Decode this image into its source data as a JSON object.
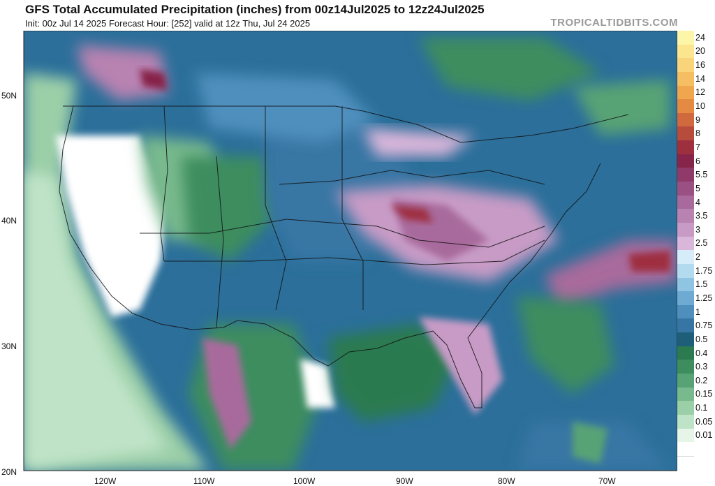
{
  "header": {
    "title": "GFS Total Accumulated Precipitation (inches) from 00z14Jul2025 to 12z24Jul2025",
    "subtitle": "Init: 00z Jul 14 2025   Forecast Hour: [252]   valid at 12z Thu, Jul 24 2025",
    "brand": "TROPICALTIDBITS.COM"
  },
  "map": {
    "lat_labels": [
      "50N",
      "40N",
      "30N",
      "20N"
    ],
    "lon_labels": [
      "120W",
      "110W",
      "100W",
      "90W",
      "80W",
      "70W"
    ]
  },
  "legend": {
    "levels": [
      {
        "label": "24",
        "color": "#fdf6a8"
      },
      {
        "label": "20",
        "color": "#fbe58f"
      },
      {
        "label": "16",
        "color": "#f9d47a"
      },
      {
        "label": "14",
        "color": "#f5be63"
      },
      {
        "label": "12",
        "color": "#f0a64f"
      },
      {
        "label": "10",
        "color": "#e58a42"
      },
      {
        "label": "9",
        "color": "#d06a3e"
      },
      {
        "label": "8",
        "color": "#b74c3d"
      },
      {
        "label": "7",
        "color": "#9e2f3f"
      },
      {
        "label": "6",
        "color": "#86244a"
      },
      {
        "label": "5.5",
        "color": "#8f3a68"
      },
      {
        "label": "5",
        "color": "#9a5082"
      },
      {
        "label": "4",
        "color": "#a86a9c"
      },
      {
        "label": "3.5",
        "color": "#b882b1"
      },
      {
        "label": "3",
        "color": "#c89bc6"
      },
      {
        "label": "2.5",
        "color": "#dab6da"
      },
      {
        "label": "2",
        "color": "#d7ecf9"
      },
      {
        "label": "1.75",
        "color": "#b3dbf0"
      },
      {
        "label": "1.5",
        "color": "#8fc4e2"
      },
      {
        "label": "1.25",
        "color": "#6eaad2"
      },
      {
        "label": "1",
        "color": "#4f8fbd"
      },
      {
        "label": "0.75",
        "color": "#3776a4"
      },
      {
        "label": "0.5",
        "color": "#1f5e78"
      },
      {
        "label": "0.4",
        "color": "#2c7a4f"
      },
      {
        "label": "0.3",
        "color": "#3d8d5e"
      },
      {
        "label": "0.2",
        "color": "#58a375"
      },
      {
        "label": "0.15",
        "color": "#78b98d"
      },
      {
        "label": "0.1",
        "color": "#9bcfa8"
      },
      {
        "label": "0.05",
        "color": "#bfe3c7"
      },
      {
        "label": "0.01",
        "color": "#e6f5e8"
      },
      {
        "label": "",
        "color": "#ffffff"
      }
    ]
  }
}
